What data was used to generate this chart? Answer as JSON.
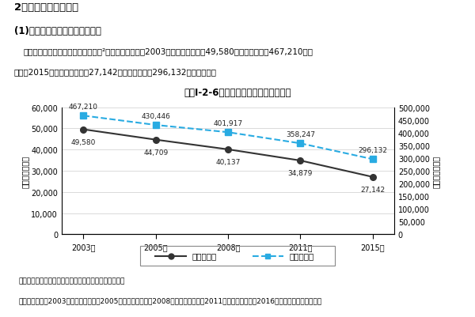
{
  "title": "図表Ⅰ-2-6　事業所数と従業者数の推移",
  "header1": "2　都内製造業の変化",
  "header2": "(1)　事業所数と従業者数の推移",
  "header3": "　都内製造業の事業所数と従業者数²の推移をみると、2003年には事業所数は49,580所、従業者数は467,210人で",
  "header4": "あり、2015年には事業所数は27,142所、従業者数は296,132人となった。",
  "note1": "（注）　点線部分は調査時点が異なるため接続しない。",
  "note2": "資料：東京都「2003東京の工業」、「2005東京の工業」、「2008東京の工業」、「2011東京の工業」、「2016東京の工業」より作成。",
  "years": [
    "2003年",
    "2005年",
    "2008年",
    "2011年",
    "2015年"
  ],
  "jigyosho": [
    49580,
    44709,
    40137,
    34879,
    27142
  ],
  "jugyosha": [
    467210,
    430446,
    401917,
    358247,
    296132
  ],
  "jigyosho_labels": [
    "49,580",
    "44,709",
    "40,137",
    "34,879",
    "27,142"
  ],
  "jugyosha_labels": [
    "467,210",
    "430,446",
    "401,917",
    "358,247",
    "296,132"
  ],
  "left_ylim": [
    0,
    60000
  ],
  "right_ylim": [
    0,
    500000
  ],
  "left_yticks": [
    0,
    10000,
    20000,
    30000,
    40000,
    50000,
    60000
  ],
  "right_yticks": [
    0,
    50000,
    100000,
    150000,
    200000,
    250000,
    300000,
    350000,
    400000,
    450000,
    500000
  ],
  "left_ylabel": "事業所数（所）",
  "right_ylabel": "従業者数（人）",
  "line1_color": "#333333",
  "line2_color": "#29abe2",
  "legend1": "都事業所数",
  "legend2": "都従業者数",
  "bg_color": "#ffffff",
  "plot_bg_color": "#ffffff"
}
